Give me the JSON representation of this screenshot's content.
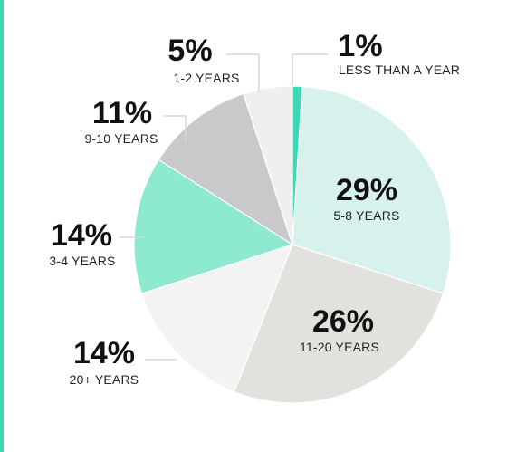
{
  "chart_data": {
    "type": "pie",
    "title": "",
    "slices": [
      {
        "category": "LESS THAN A YEAR",
        "label": "1%",
        "value": 1,
        "color": "#3dd9b3"
      },
      {
        "category": "5-8 YEARS",
        "label": "29%",
        "value": 29,
        "color": "#d7f1ec"
      },
      {
        "category": "11-20 YEARS",
        "label": "26%",
        "value": 26,
        "color": "#e3e1de"
      },
      {
        "category": "20+ YEARS",
        "label": "14%",
        "value": 14,
        "color": "#f3f3f3"
      },
      {
        "category": "3-4 YEARS",
        "label": "14%",
        "value": 14,
        "color": "#8de9d0"
      },
      {
        "category": "9-10 YEARS",
        "label": "11%",
        "value": 11,
        "color": "#c9c8ca"
      },
      {
        "category": "1-2 YEARS",
        "label": "5%",
        "value": 5,
        "color": "#efefed"
      }
    ]
  },
  "theme": {
    "accent_bar_color": "#3dd9b3"
  }
}
